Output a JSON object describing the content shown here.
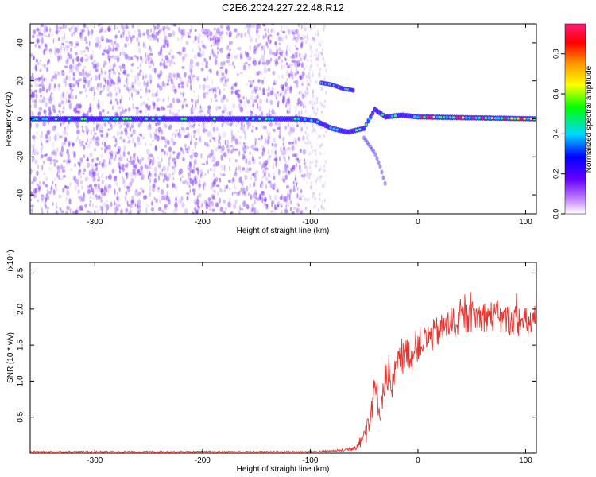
{
  "title": "C2E6.2024.227.22.48.R12",
  "colors": {
    "snr_line": "#e8342e",
    "ridge": "#3b16ff",
    "speckle": "#7c2bff",
    "colorbar": [
      "#ffffff",
      "#8a2be2",
      "#0000ff",
      "#00e5ff",
      "#00ff00",
      "#ffff00",
      "#ff8c00",
      "#ff0000",
      "#ff1493"
    ]
  },
  "chart_data": [
    {
      "type": "heatmap",
      "xlabel": "Height of straight line (km)",
      "ylabel": "Frequency (Hz)",
      "xlim": [
        -360,
        110
      ],
      "ylim": [
        -50,
        50
      ],
      "xticks": [
        -300,
        -200,
        -100,
        0,
        100
      ],
      "yticks": [
        -40,
        -20,
        0,
        20,
        40
      ],
      "colorbar": {
        "label": "Normalized spectral amplitude",
        "range": [
          0,
          0.95
        ],
        "ticks": [
          0.0,
          0.2,
          0.4,
          0.6,
          0.8
        ]
      },
      "features": [
        {
          "name": "carrier",
          "x": [
            -360,
            -110,
            -95,
            -80,
            -65,
            -50,
            -40,
            -30,
            -15,
            0,
            110
          ],
          "y": [
            0,
            0,
            -1,
            -5,
            -7,
            -5,
            5,
            1,
            2,
            1,
            0
          ]
        },
        {
          "name": "upper branch",
          "x": [
            -90,
            -80,
            -70,
            -60
          ],
          "y": [
            19,
            18,
            16,
            15
          ]
        },
        {
          "name": "lower branch",
          "x": [
            -50,
            -40,
            -35,
            -30
          ],
          "y": [
            -10,
            -18,
            -25,
            -35
          ]
        }
      ]
    },
    {
      "type": "line",
      "xlabel": "Height of straight line (km)",
      "ylabel": "SNR (10 * v/v)",
      "y_multiplier": "(x10⁴)",
      "xlim": [
        -360,
        110
      ],
      "ylim": [
        0,
        2.65
      ],
      "xticks": [
        -300,
        -200,
        -100,
        0,
        100
      ],
      "yticks": [
        0.5,
        1.0,
        1.5,
        2.0,
        2.5
      ],
      "series": [
        {
          "x": [
            -360,
            -300,
            -200,
            -100,
            -80,
            -70,
            -60,
            -55,
            -50,
            -45,
            -40,
            -35,
            -30,
            -25,
            -20,
            -15,
            -10,
            -5,
            0,
            10,
            20,
            30,
            40,
            50,
            60,
            70,
            80,
            90,
            100,
            110
          ],
          "y": [
            0.02,
            0.02,
            0.02,
            0.02,
            0.03,
            0.04,
            0.07,
            0.12,
            0.25,
            0.5,
            0.9,
            0.6,
            1.1,
            0.8,
            1.2,
            1.3,
            1.4,
            1.35,
            1.5,
            1.6,
            1.7,
            1.8,
            1.85,
            1.9,
            1.9,
            1.9,
            1.85,
            1.85,
            1.8,
            1.85
          ]
        }
      ]
    }
  ]
}
